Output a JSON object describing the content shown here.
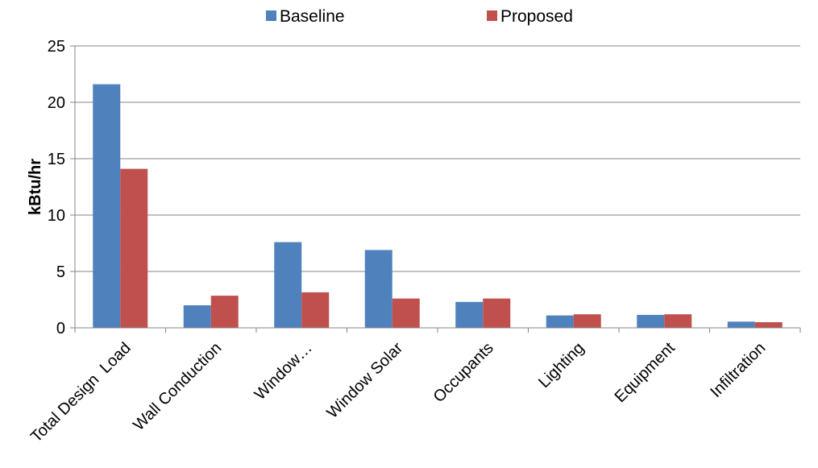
{
  "chart_data": {
    "type": "bar",
    "title": "",
    "xlabel": "",
    "ylabel": "kBtu/hr",
    "ylim": [
      0,
      25
    ],
    "yticks": [
      0,
      5,
      10,
      15,
      20,
      25
    ],
    "grid": true,
    "legend_position": "top",
    "categories": [
      "Total Design  Load",
      "Wall Conduction",
      "Window…",
      "Window Solar",
      "Occupants",
      "Lighting",
      "Equipment",
      "Infiltration"
    ],
    "series": [
      {
        "name": "Baseline",
        "color": "#4F81BD",
        "values": [
          21.6,
          2.0,
          7.6,
          6.9,
          2.3,
          1.1,
          1.15,
          0.55
        ]
      },
      {
        "name": "Proposed",
        "color": "#C0504D",
        "values": [
          14.1,
          2.85,
          3.15,
          2.6,
          2.6,
          1.2,
          1.2,
          0.5
        ]
      }
    ]
  }
}
